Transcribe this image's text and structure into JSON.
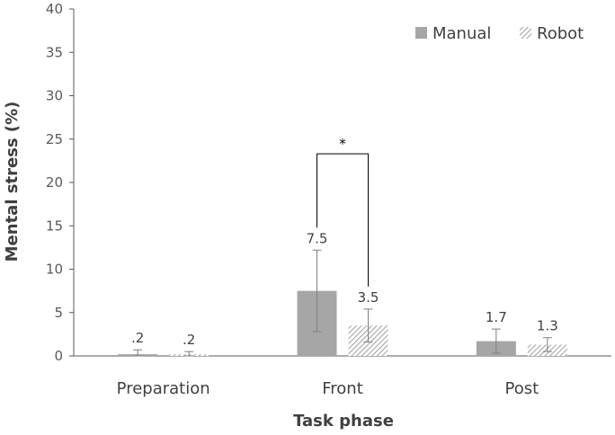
{
  "chart_data": {
    "type": "bar",
    "xlabel": "Task phase",
    "ylabel": "Mental stress (%)",
    "ylim": [
      0,
      40
    ],
    "yticks": [
      0,
      5,
      10,
      15,
      20,
      25,
      30,
      35,
      40
    ],
    "categories": [
      "Preparation",
      "Front",
      "Post"
    ],
    "series": [
      {
        "name": "Manual",
        "values": [
          0.2,
          7.5,
          1.7
        ],
        "error": [
          0.5,
          4.7,
          1.4
        ],
        "labels": [
          ".2",
          "7.5",
          "1.7"
        ],
        "color": "#a6a6a6",
        "pattern": "solid"
      },
      {
        "name": "Robot",
        "values": [
          0.2,
          3.5,
          1.3
        ],
        "error": [
          0.3,
          1.9,
          0.8
        ],
        "labels": [
          ".2",
          "3.5",
          "1.3"
        ],
        "color": "#a6a6a6",
        "pattern": "hatched"
      }
    ],
    "significance": [
      {
        "category": "Front",
        "marker": "*"
      }
    ],
    "legend": "top-right",
    "grid": false
  }
}
